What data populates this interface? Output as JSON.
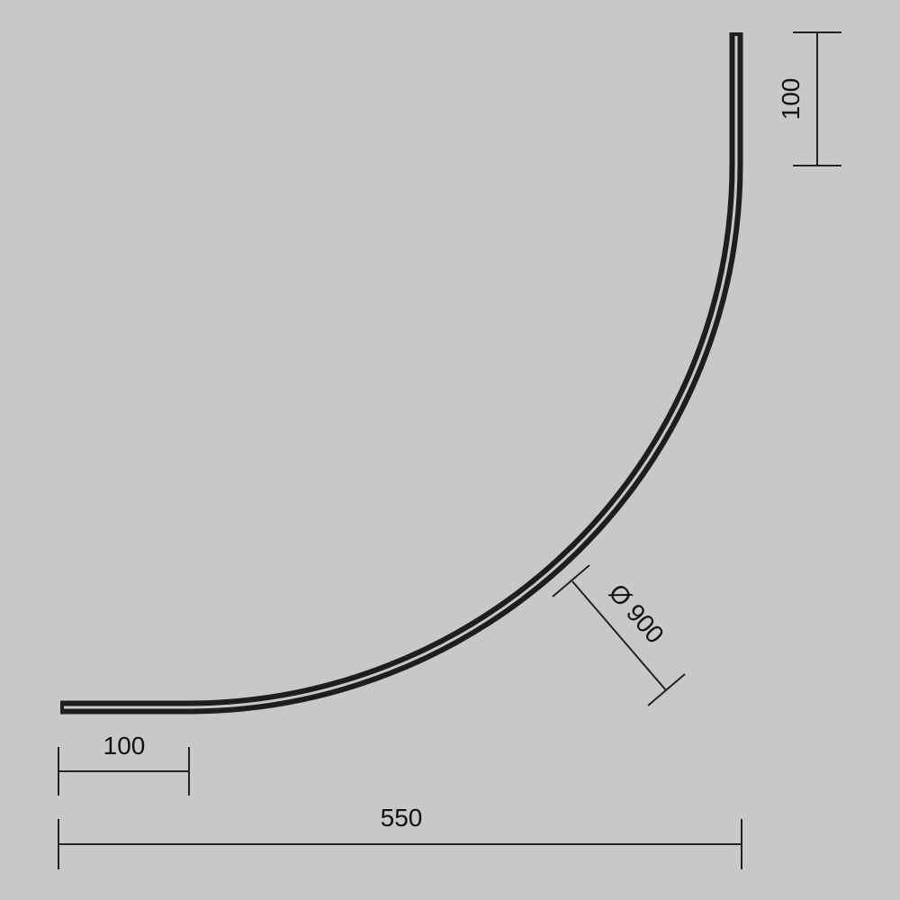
{
  "background_color": "#c8c8c8",
  "line_color": "#1e1e1e",
  "dimensions": {
    "top_straight": "100",
    "bottom_straight": "100",
    "total_width": "550",
    "diameter": "Ø 900"
  }
}
